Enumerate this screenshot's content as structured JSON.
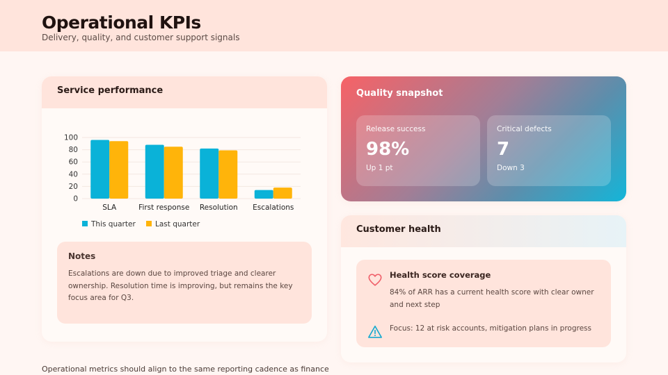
{
  "header": {
    "title": "Operational KPIs",
    "subtitle": "Delivery, quality, and customer support signals"
  },
  "service": {
    "title": "Service performance",
    "notes_title": "Notes",
    "notes_body": "Escalations are down due to improved triage and clearer ownership. Resolution time is improving, but remains the key focus area for Q3."
  },
  "chart_data": {
    "type": "bar",
    "categories": [
      "SLA",
      "First response",
      "Resolution",
      "Escalations"
    ],
    "series": [
      {
        "name": "This quarter",
        "values": [
          96,
          88,
          82,
          14
        ],
        "color": "#0ab2d8"
      },
      {
        "name": "Last quarter",
        "values": [
          94,
          85,
          79,
          18
        ],
        "color": "#ffb40a"
      }
    ],
    "yticks": [
      "0",
      "20",
      "40",
      "60",
      "80",
      "100"
    ],
    "ylim": [
      0,
      100
    ],
    "legend_position": "bottom-left",
    "grid": true
  },
  "quality": {
    "title": "Quality snapshot",
    "release": {
      "label": "Release success",
      "value": "98%",
      "delta": "Up 1 pt"
    },
    "defects": {
      "label": "Critical defects",
      "value": "7",
      "delta": "Down 3"
    }
  },
  "customer": {
    "title": "Customer health",
    "health_title": "Health score coverage",
    "health_desc": "84% of ARR has a current health score with clear owner and next step",
    "focus": "Focus: 12 at risk accounts, mitigation plans in progress",
    "heart_color": "#f0606a",
    "warn_color": "#16a9cf"
  },
  "footer": {
    "note": "Operational metrics should align to the same reporting cadence as finance"
  }
}
